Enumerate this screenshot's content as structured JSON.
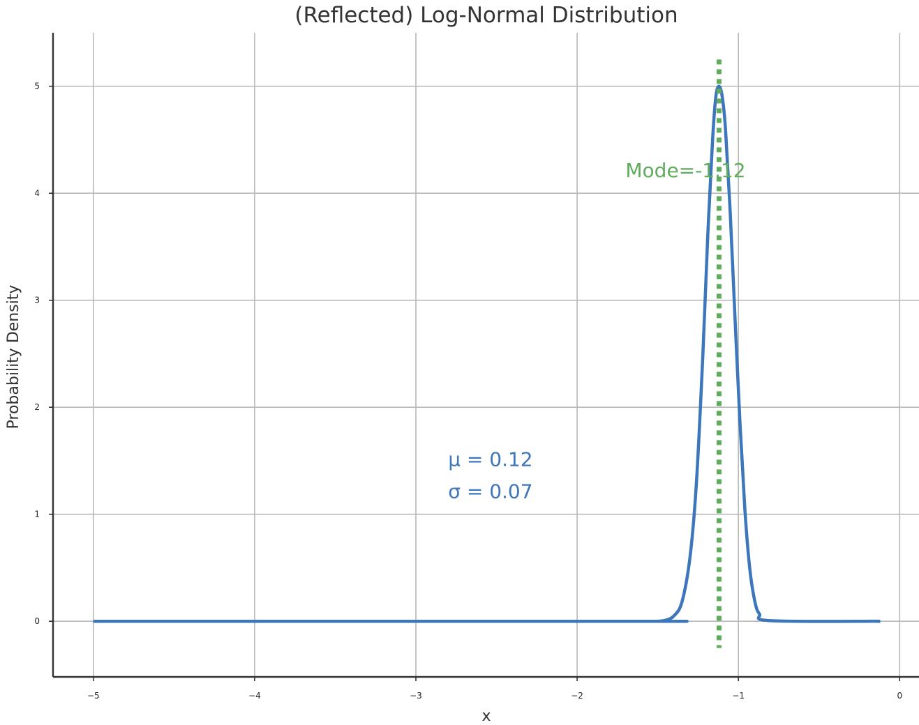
{
  "chart_data": {
    "type": "line",
    "title": "(Reflected) Log-Normal Distribution",
    "xlabel": "x",
    "ylabel": "Probability Density",
    "xlim": [
      -5.25,
      0.12
    ],
    "ylim": [
      -0.52,
      5.5
    ],
    "xticks": [
      -5,
      -4,
      -3,
      -2,
      -1,
      0
    ],
    "xtick_labels": [
      "−5",
      "−4",
      "−3",
      "−2",
      "−1",
      "0"
    ],
    "yticks": [
      0,
      1,
      2,
      3,
      4,
      5
    ],
    "ytick_labels": [
      "0",
      "1",
      "2",
      "3",
      "4",
      "5"
    ],
    "grid": true,
    "series": [
      {
        "x": [
          -5.0,
          -1.6,
          -1.5,
          -1.45,
          -1.4,
          -1.35,
          -1.3,
          -1.26,
          -1.22,
          -1.19,
          -1.16,
          -1.14,
          -1.12,
          -1.1,
          -1.08,
          -1.05,
          -1.02,
          -0.99,
          -0.96,
          -0.93,
          -0.9,
          -0.87,
          -0.8,
          -0.12
        ],
        "y": [
          0.0,
          0.0,
          0.0,
          0.01,
          0.05,
          0.18,
          0.6,
          1.3,
          2.5,
          3.6,
          4.5,
          4.9,
          5.0,
          4.9,
          4.6,
          3.8,
          2.8,
          1.85,
          1.05,
          0.5,
          0.2,
          0.07,
          0.005,
          0.0
        ],
        "color": "#3d76bb"
      }
    ],
    "mode_line": {
      "x": -1.12,
      "y_range": [
        -0.25,
        5.25
      ],
      "color": "#5fad5c"
    },
    "annotations": {
      "mode_label": "Mode=-1.12",
      "mode_label_pos": [
        -1.7,
        4.15
      ],
      "mu_label": "μ = 0.12",
      "sigma_label": "σ = 0.07",
      "params_pos": [
        -2.8,
        1.45
      ],
      "params_color": "#3d76bb",
      "mode_color": "#5fad5c"
    }
  }
}
